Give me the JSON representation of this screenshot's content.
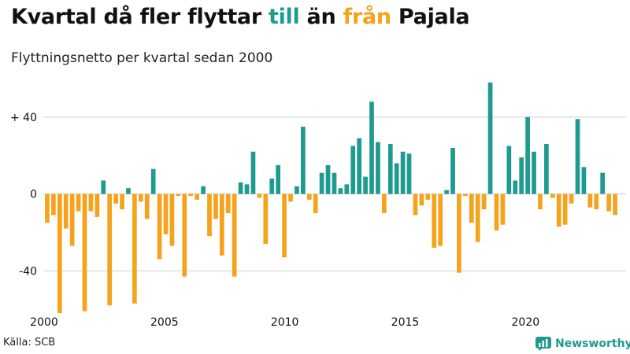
{
  "header": {
    "title_part1": "Kvartal då fler flyttar ",
    "title_till": "till",
    "title_part2": " än ",
    "title_fran": "från",
    "title_part3": " Pajala",
    "subtitle": "Flyttningsnetto per kvartal sedan 2000"
  },
  "footer": {
    "source": "Källa: SCB",
    "brand": "Newsworthy"
  },
  "icons": {
    "brand_logo": "bar-chart-icon"
  },
  "colors": {
    "positive": "#1f9a8e",
    "negative": "#f5a31c"
  },
  "chart_data": {
    "type": "bar",
    "ylabel": "",
    "xlabel": "",
    "ylim": [
      -62,
      60
    ],
    "xlim": [
      2000,
      2023.85
    ],
    "yticks": [
      {
        "value": 40,
        "label": "+ 40"
      },
      {
        "value": 0,
        "label": "0"
      },
      {
        "value": -40,
        "label": "-40"
      }
    ],
    "xticks": [
      {
        "value": 2000,
        "label": "2000"
      },
      {
        "value": 2005,
        "label": "2005"
      },
      {
        "value": 2010,
        "label": "2010"
      },
      {
        "value": 2015,
        "label": "2015"
      },
      {
        "value": 2020,
        "label": "2020"
      }
    ],
    "grid": true,
    "start": "2000 Q1",
    "series": [
      {
        "values": [
          -15,
          -11,
          -62,
          -18,
          -27,
          -9,
          -61,
          -9,
          -12,
          7,
          -58,
          -5,
          -8,
          3,
          -57,
          -4,
          -13,
          13,
          -34,
          -21,
          -27,
          -1,
          -43,
          -1,
          -3,
          4,
          -22,
          -13,
          -32,
          -10,
          -43,
          6,
          5,
          22,
          -2,
          -26,
          8,
          15,
          -33,
          -4,
          4,
          35,
          -3,
          -10,
          11,
          15,
          11,
          3,
          5,
          25,
          29,
          9,
          48,
          27,
          -10,
          26,
          16,
          22,
          21,
          -11,
          -6,
          -3,
          -28,
          -27,
          2,
          24,
          -41,
          -1,
          -15,
          -25,
          -8,
          58,
          -19,
          -16,
          25,
          7,
          19,
          40,
          22,
          -8,
          26,
          -2,
          -17,
          -16,
          -5,
          39,
          14,
          -7,
          -8,
          11,
          -9,
          -11
        ]
      }
    ]
  }
}
